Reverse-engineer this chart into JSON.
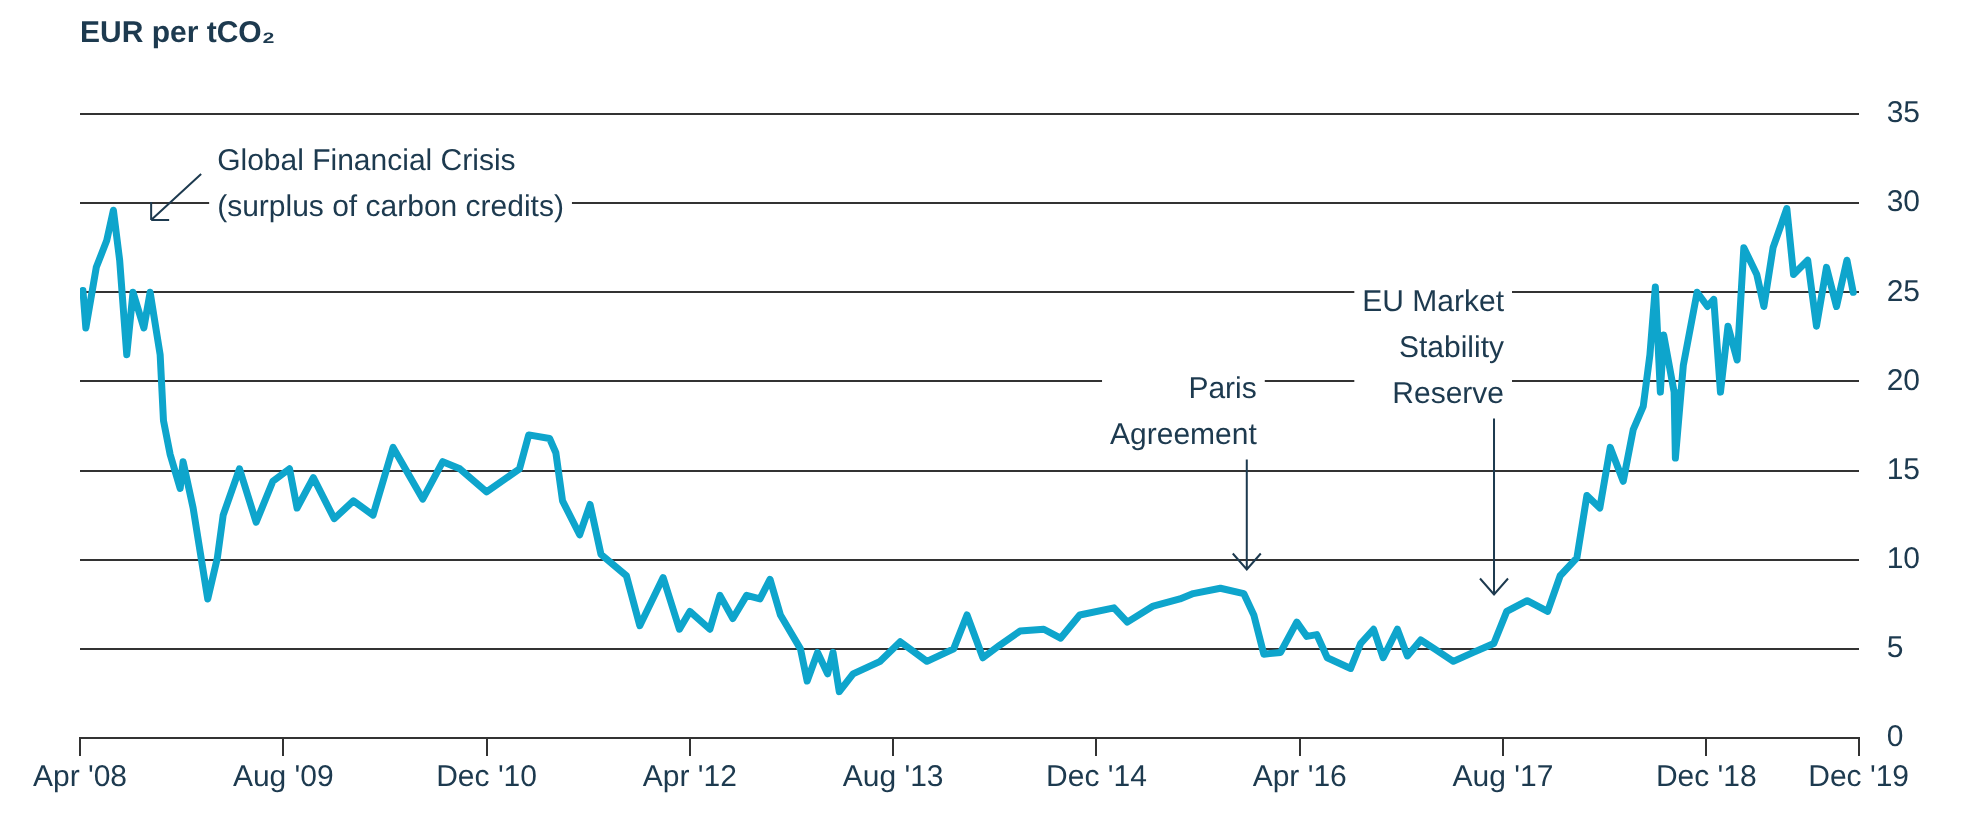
{
  "chart_data": {
    "type": "line",
    "ylabel": "EUR per tCO₂",
    "x": [
      "2008-04-08",
      "2008-04-15",
      "2008-05-10",
      "2008-06-04",
      "2008-06-20",
      "2008-07-05",
      "2008-07-22",
      "2008-08-06",
      "2008-09-01",
      "2008-09-16",
      "2008-10-10",
      "2008-10-18",
      "2008-11-03",
      "2008-11-27",
      "2008-12-04",
      "2008-12-28",
      "2009-02-01",
      "2009-02-24",
      "2009-03-10",
      "2009-04-18",
      "2009-05-28",
      "2009-07-07",
      "2009-08-16",
      "2009-09-03",
      "2009-10-12",
      "2009-12-01",
      "2010-01-16",
      "2010-03-04",
      "2010-04-21",
      "2010-07-01",
      "2010-08-18",
      "2010-09-28",
      "2010-12-01",
      "2011-02-18",
      "2011-03-12",
      "2011-05-01",
      "2011-05-16",
      "2011-06-01",
      "2011-07-12",
      "2011-08-06",
      "2011-09-01",
      "2011-11-01",
      "2011-12-03",
      "2012-01-28",
      "2012-03-07",
      "2012-04-01",
      "2012-05-19",
      "2012-06-12",
      "2012-07-13",
      "2012-08-15",
      "2012-09-16",
      "2012-10-10",
      "2012-11-04",
      "2012-12-22",
      "2013-01-07",
      "2013-02-01",
      "2013-02-25",
      "2013-03-10",
      "2013-03-25",
      "2013-04-27",
      "2013-07-01",
      "2013-08-18",
      "2013-10-21",
      "2013-12-24",
      "2014-01-25",
      "2014-03-04",
      "2014-04-13",
      "2014-06-01",
      "2014-07-28",
      "2014-09-06",
      "2014-10-22",
      "2015-01-12",
      "2015-02-13",
      "2015-04-16",
      "2015-06-19",
      "2015-07-21",
      "2015-09-24",
      "2015-11-19",
      "2015-12-13",
      "2016-01-06",
      "2016-02-15",
      "2016-03-25",
      "2016-04-18",
      "2016-05-12",
      "2016-06-06",
      "2016-08-01",
      "2016-08-25",
      "2016-09-25",
      "2016-10-18",
      "2016-11-21",
      "2016-12-15",
      "2017-01-16",
      "2017-02-18",
      "2017-04-04",
      "2017-05-22",
      "2017-07-10",
      "2017-08-10",
      "2017-09-28",
      "2017-11-16",
      "2017-12-16",
      "2018-01-25",
      "2018-02-18",
      "2018-03-21",
      "2018-04-15",
      "2018-05-16",
      "2018-06-09",
      "2018-07-03",
      "2018-07-19",
      "2018-08-01",
      "2018-08-13",
      "2018-08-21",
      "2018-09-15",
      "2018-09-18",
      "2018-10-07",
      "2018-11-09",
      "2018-12-04",
      "2018-12-19",
      "2019-01-04",
      "2019-01-22",
      "2019-02-13",
      "2019-03-01",
      "2019-04-01",
      "2019-04-18",
      "2019-05-10",
      "2019-06-12",
      "2019-06-28",
      "2019-08-01",
      "2019-08-22",
      "2019-09-15",
      "2019-10-09",
      "2019-11-03",
      "2019-11-18"
    ],
    "series": [
      {
        "color": "#0ea5cc",
        "values": [
          25.1,
          23.0,
          26.4,
          27.9,
          29.6,
          26.8,
          21.5,
          25.0,
          23.0,
          25.0,
          21.5,
          17.8,
          15.9,
          14.0,
          15.5,
          12.9,
          7.8,
          10.1,
          12.5,
          15.1,
          12.1,
          14.4,
          15.1,
          12.9,
          14.6,
          12.3,
          13.3,
          12.5,
          16.3,
          13.4,
          15.5,
          15.1,
          13.8,
          15.1,
          17.0,
          16.8,
          16.0,
          13.3,
          11.4,
          13.1,
          10.3,
          9.1,
          6.3,
          9.0,
          6.1,
          7.1,
          6.1,
          8.0,
          6.7,
          8.0,
          7.8,
          8.9,
          6.9,
          5.0,
          3.2,
          4.8,
          3.6,
          4.8,
          2.6,
          3.6,
          4.3,
          5.4,
          4.3,
          5.0,
          6.9,
          4.5,
          5.2,
          6.0,
          6.1,
          5.6,
          6.9,
          7.3,
          6.5,
          7.4,
          7.8,
          8.1,
          8.4,
          8.1,
          6.9,
          4.7,
          4.8,
          6.5,
          5.7,
          5.8,
          4.5,
          3.9,
          5.3,
          6.1,
          4.5,
          6.1,
          4.6,
          5.5,
          5.0,
          4.3,
          4.8,
          5.3,
          7.1,
          7.7,
          7.1,
          9.1,
          10.1,
          13.6,
          12.9,
          16.3,
          14.4,
          17.3,
          18.6,
          21.5,
          25.3,
          19.4,
          22.6,
          19.4,
          15.7,
          20.9,
          25.0,
          24.2,
          24.6,
          19.4,
          23.1,
          21.2,
          27.5,
          26.0,
          24.2,
          27.5,
          29.7,
          26.0,
          26.8,
          23.1,
          26.4,
          24.2,
          26.8,
          25.0
        ]
      }
    ],
    "xlim": [
      "2008-04",
      "2019-12"
    ],
    "xticks": [
      {
        "value": "2008-04",
        "label": "Apr '08"
      },
      {
        "value": "2009-08",
        "label": "Aug '09"
      },
      {
        "value": "2010-12",
        "label": "Dec '10"
      },
      {
        "value": "2012-04",
        "label": "Apr '12"
      },
      {
        "value": "2013-08",
        "label": "Aug '13"
      },
      {
        "value": "2014-12",
        "label": "Dec '14"
      },
      {
        "value": "2016-04",
        "label": "Apr '16"
      },
      {
        "value": "2017-08",
        "label": "Aug '17"
      },
      {
        "value": "2018-12",
        "label": "Dec '18"
      },
      {
        "value": "2019-12",
        "label": "Dec '19"
      }
    ],
    "ylim": [
      0,
      35
    ],
    "yticks": [
      0,
      5,
      10,
      15,
      20,
      25,
      30,
      35
    ],
    "grid": "y",
    "legend": false,
    "marker": "none",
    "line_style": "solid",
    "annotations": [
      "Global Financial Crisis\n(surplus of carbon credits)",
      "Paris\nAgreement",
      "EU Market\nStability\nReserve"
    ]
  }
}
